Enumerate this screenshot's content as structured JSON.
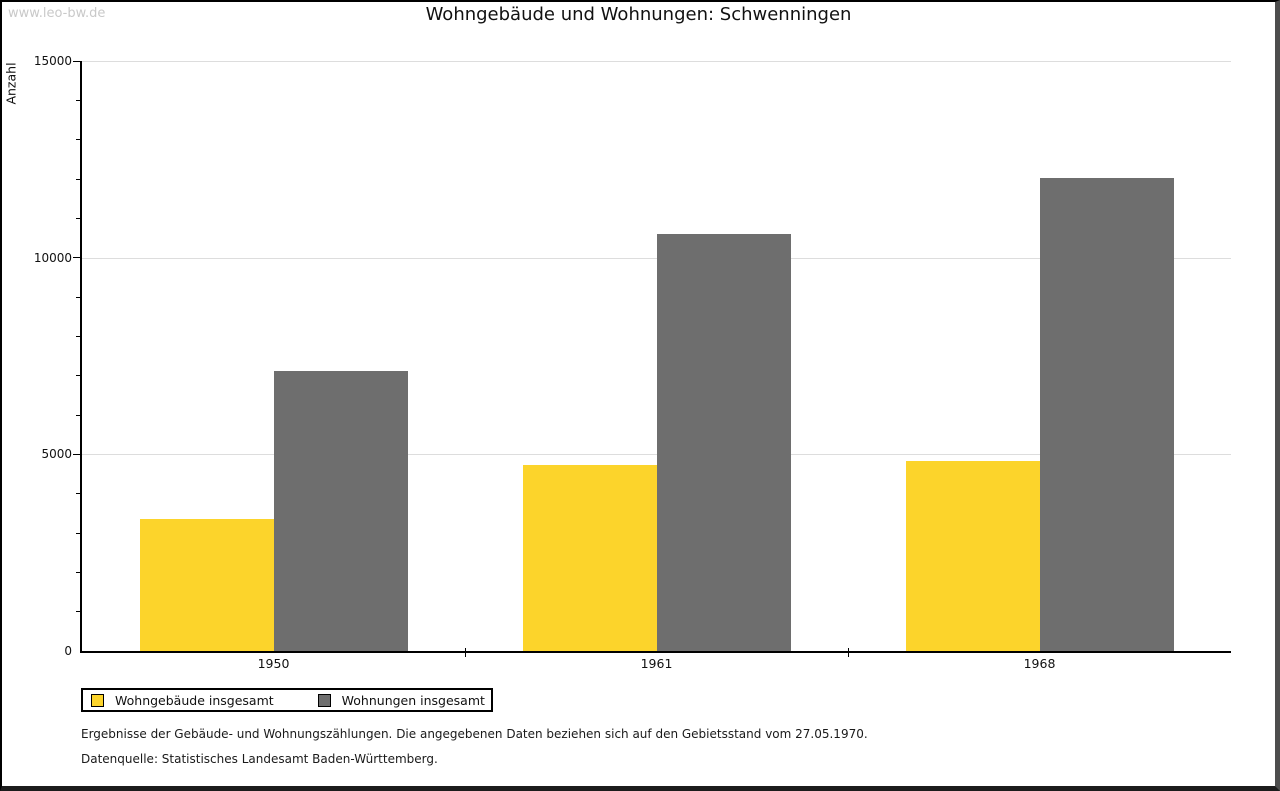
{
  "watermark": "www.leo-bw.de",
  "chart_data": {
    "type": "bar",
    "title": "Wohngebäude und Wohnungen: Schwenningen",
    "categories": [
      "1950",
      "1961",
      "1968"
    ],
    "series": [
      {
        "name": "Wohngebäude insgesamt",
        "color": "#FCD42B",
        "values": [
          3360,
          4730,
          4830
        ]
      },
      {
        "name": "Wohnungen insgesamt",
        "color": "#6E6E6E",
        "values": [
          7120,
          10600,
          12020
        ]
      }
    ],
    "xlabel": "",
    "ylabel": "Anzahl",
    "ylim": [
      0,
      15000
    ],
    "ytick_major": 5000,
    "ytick_minor": 1000,
    "ytick_labels": [
      "0",
      "5000",
      "10000",
      "15000"
    ],
    "grid": "horizontal-major",
    "grid_color": "#DDDDDD",
    "axis_color": "#000000",
    "legend_position": "bottom-left"
  },
  "footnotes": {
    "line1": "Ergebnisse der Gebäude- und Wohnungszählungen. Die angegebenen Daten beziehen sich auf den Gebietsstand vom 27.05.1970.",
    "line2": "Datenquelle: Statistisches Landesamt Baden-Württemberg."
  }
}
